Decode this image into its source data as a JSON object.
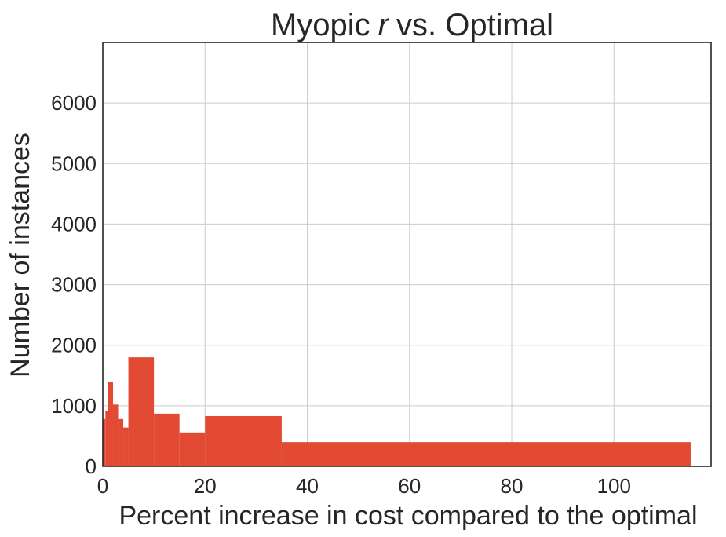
{
  "chart_data": {
    "type": "bar",
    "title": "Myopic",
    "title_italic": "r",
    "title_suffix": "vs. Optimal",
    "xlabel": "Percent increase in cost compared to the optimal",
    "ylabel": "Number of instances",
    "xlim": [
      0,
      119
    ],
    "ylim": [
      0,
      7000
    ],
    "xticks": [
      0,
      20,
      40,
      60,
      80,
      100
    ],
    "yticks": [
      0,
      1000,
      2000,
      3000,
      4000,
      5000,
      6000
    ],
    "grid": true,
    "color": "#e34a33",
    "bins": [
      {
        "x0": 0,
        "x1": 0.5,
        "value": 780
      },
      {
        "x0": 0.5,
        "x1": 1,
        "value": 920
      },
      {
        "x0": 1,
        "x1": 2,
        "value": 1400
      },
      {
        "x0": 2,
        "x1": 3,
        "value": 1020
      },
      {
        "x0": 3,
        "x1": 4,
        "value": 780
      },
      {
        "x0": 4,
        "x1": 5,
        "value": 640
      },
      {
        "x0": 5,
        "x1": 10,
        "value": 1800
      },
      {
        "x0": 10,
        "x1": 15,
        "value": 870
      },
      {
        "x0": 15,
        "x1": 20,
        "value": 560
      },
      {
        "x0": 20,
        "x1": 35,
        "value": 830
      },
      {
        "x0": 35,
        "x1": 115,
        "value": 400
      }
    ]
  }
}
